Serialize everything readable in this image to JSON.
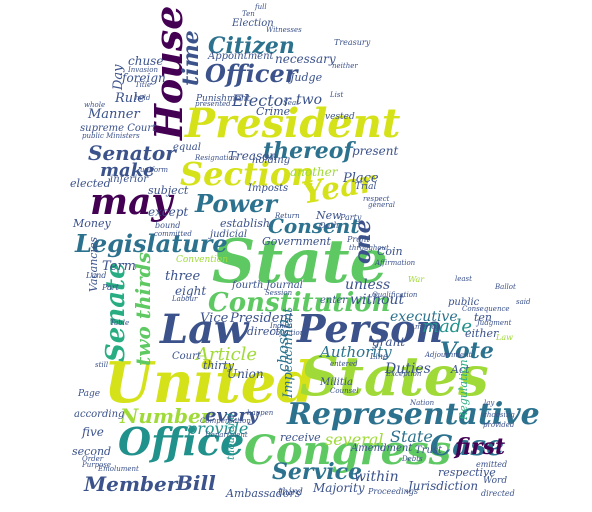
{
  "words": {
    "united": "United",
    "states": "States",
    "state_big": "State",
    "law": "Law",
    "person": "Person",
    "president_big": "President",
    "congress": "Congress",
    "office": "Office",
    "representative": "Representative",
    "house": "House",
    "section": "Section",
    "year": "Year",
    "may": "may",
    "senate": "Senate",
    "constitution": "Constitution",
    "legislature": "Legislature",
    "case": "Case",
    "officer": "Officer",
    "citizen": "Citizen",
    "power": "Power",
    "senator": "Senator",
    "service": "Service",
    "bill": "Bill",
    "member": "Member",
    "vote": "Vote",
    "consent": "Consent",
    "number": "Number",
    "article": "Article",
    "one": "one",
    "two_thirds": "two thirds",
    "time": "time",
    "thereof": "thereof",
    "make": "make",
    "made": "made",
    "first": "first",
    "every": "every",
    "provide": "provide",
    "state_small": "State",
    "several": "several",
    "authority": "Authority",
    "executive": "executive",
    "unless": "unless",
    "without": "without",
    "vice": "Vice",
    "president_small": "President",
    "term": "Term",
    "three": "three",
    "eight": "eight",
    "chosen": "chosen",
    "impeachment": "Impeachment",
    "duties": "Duties",
    "within": "within",
    "majority": "Majority",
    "ambassadors": "Ambassadors",
    "jurisdiction": "Jurisdiction",
    "respective": "respective",
    "second": "second",
    "five": "five",
    "according": "according",
    "union": "Union",
    "thirty": "thirty",
    "elector": "Elector",
    "two": "two",
    "judge": "Judge",
    "necessary": "necessary",
    "appointment": "Appointment",
    "election": "Election",
    "day": "Day",
    "foreign": "foreign",
    "chuse": "chuse",
    "rule": "Rule",
    "manner": "Manner",
    "supreme_court": "supreme Court",
    "treason": "Treason",
    "crime": "Crime",
    "present": "present",
    "place": "Place",
    "another": "another",
    "new": "New",
    "government": "Government",
    "coin": "Coin",
    "journal": "Journal",
    "fourth": "fourth",
    "court": "Court",
    "money": "Money",
    "except": "except",
    "establish": "establish",
    "judicial": "judicial",
    "subject": "subject",
    "imposts": "Imposts",
    "holding": "holding",
    "equal": "equal",
    "vacancies": "Vacancies",
    "elected": "elected",
    "inferior": "inferior",
    "grant": "grant",
    "act": "Act",
    "either": "either",
    "ten": "ten",
    "cases": "Case",
    "receive": "receive",
    "amendment": "Amendment",
    "direct": "direct",
    "enter": "enter",
    "convention": "Convention",
    "trial": "Trial",
    "vested": "vested",
    "militia": "Militia",
    "public": "public",
    "page": "Page",
    "punishment": "Punishment",
    "third": "third",
    "treasury": "Treasury",
    "oath": "Oath",
    "party": "Party",
    "law_small": "Law",
    "regulation": "Regulation",
    "trust": "Trust",
    "word": "Word",
    "directed": "directed",
    "emitted": "emitted",
    "war": "War",
    "least": "least",
    "ballot": "Ballot",
    "said": "said",
    "profit": "Profit",
    "america": "America",
    "exception": "Exception",
    "consequence": "Consequence",
    "judgment": "Judgment",
    "proceedings": "Proceedings",
    "department": "Department",
    "debts": "Debts",
    "land": "Land",
    "part": "Part",
    "resignation": "Resignation",
    "return": "Return",
    "labour": "Labour",
    "table": "Table",
    "order": "Order",
    "purpose": "Purpose",
    "emolument": "Emolument",
    "thousand": "thousand",
    "ten_small": "Ten",
    "full": "full",
    "invasion": "Invasion",
    "title": "Title",
    "uniform": "uniform",
    "witnesses": "Witnesses",
    "ministers": "public Ministers",
    "bound": "bound",
    "committed": "committed",
    "presented": "presented",
    "general": "general",
    "throughout": "throughout",
    "session": "Session",
    "adjournment": "Adjournment",
    "line": "Line",
    "happen": "happen",
    "lay": "lay",
    "choosing": "choosing",
    "provided": "provided",
    "entered": "entered",
    "list": "List",
    "seat": "Seat",
    "still": "still",
    "compensation": "Compensation",
    "nation": "Nation",
    "qualification": "Qualification",
    "neither": "neither",
    "counsel": "Counsel",
    "objections": "Objections",
    "whole": "whole",
    "held": "held",
    "indian": "Indian",
    "respect": "respect",
    "affirmation": "Affirmation"
  }
}
